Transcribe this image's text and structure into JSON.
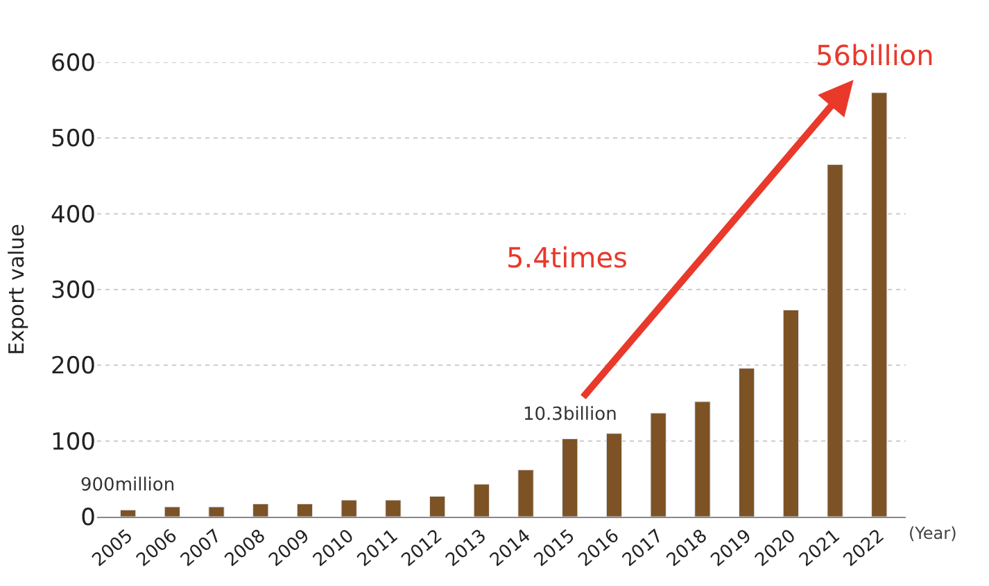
{
  "chart_data": {
    "type": "bar",
    "categories": [
      "2005",
      "2006",
      "2007",
      "2008",
      "2009",
      "2010",
      "2011",
      "2012",
      "2013",
      "2014",
      "2015",
      "2016",
      "2017",
      "2018",
      "2019",
      "2020",
      "2021",
      "2022"
    ],
    "values": [
      9,
      13,
      13,
      17,
      17,
      22,
      22,
      27,
      43,
      62,
      103,
      110,
      137,
      152,
      196,
      273,
      465,
      560
    ],
    "color": "#7d5225",
    "ylabel": "Export value",
    "xlabel": "(Year)",
    "ylim": [
      0,
      600
    ],
    "yticks": [
      0,
      100,
      200,
      300,
      400,
      500,
      600
    ],
    "grid": "y",
    "legend": false,
    "annotations": [
      {
        "text": "900million",
        "x": "2005",
        "y": 9
      },
      {
        "text": "10.3billion",
        "x": "2015",
        "y": 103
      },
      {
        "text": "56billion",
        "x": "2022",
        "y": 560
      },
      "5.4times"
    ]
  }
}
